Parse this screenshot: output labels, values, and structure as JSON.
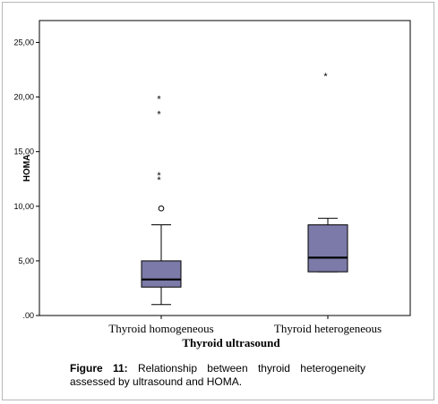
{
  "chart_data": {
    "type": "boxplot",
    "xlabel": "Thyroid ultrasound",
    "ylabel": "HOMA",
    "ylim": [
      0,
      27
    ],
    "yticks": [
      0,
      5,
      10,
      15,
      20,
      25
    ],
    "ytick_labels": [
      ".00",
      "5,00",
      "10,00",
      "15,00",
      "20,00",
      "25,00"
    ],
    "box_color": "#7b7aa8",
    "groups": [
      {
        "label": "Thyroid homogeneous",
        "whisker_low": 1.0,
        "q1": 2.6,
        "median": 3.3,
        "q3": 5.0,
        "whisker_high": 8.3,
        "outliers": [
          {
            "value": 9.8,
            "marker": "o",
            "symbol": "○"
          },
          {
            "value": 12.6,
            "marker": "*",
            "symbol": "*"
          },
          {
            "value": 13.0,
            "marker": "*",
            "symbol": "*"
          },
          {
            "value": 18.6,
            "marker": "*",
            "symbol": "*"
          },
          {
            "value": 20.0,
            "marker": "*",
            "symbol": "*"
          }
        ]
      },
      {
        "label": "Thyroid heterogeneous",
        "whisker_low": 4.0,
        "q1": 4.0,
        "median": 5.3,
        "q3": 8.3,
        "whisker_high": 8.9,
        "outliers": [
          {
            "value": 22.1,
            "marker": "*",
            "symbol": "*"
          }
        ]
      }
    ]
  },
  "caption": {
    "label": "Figure 11:",
    "text": "Relationship between thyroid heterogeneity assessed by ultrasound and HOMA."
  }
}
